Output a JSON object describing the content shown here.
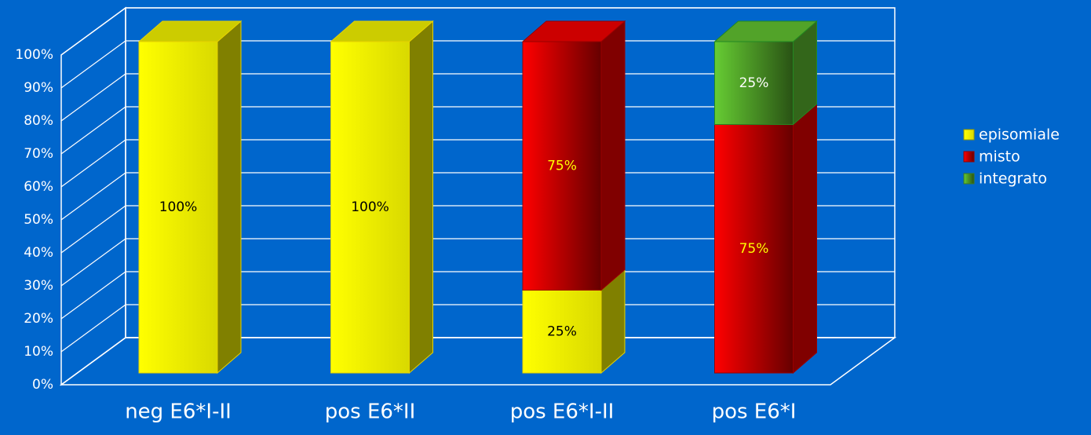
{
  "chart_data": {
    "type": "bar3d-stacked",
    "categories": [
      "neg E6*I-II",
      "pos E6*II",
      "pos E6*I-II",
      "pos E6*I"
    ],
    "series": [
      {
        "name": "episomiale",
        "color": "#ffff00",
        "label_color": "#000000",
        "values": [
          100,
          100,
          25,
          0
        ],
        "value_labels": [
          "100%",
          "100%",
          "25%",
          null
        ]
      },
      {
        "name": "misto",
        "color": "#ff0000",
        "label_color": "#ffff00",
        "values": [
          0,
          0,
          75,
          75
        ],
        "value_labels": [
          null,
          null,
          "75%",
          "75%"
        ]
      },
      {
        "name": "integrato",
        "color": "#66cc33",
        "label_color": "#ffffff",
        "values": [
          0,
          0,
          0,
          25
        ],
        "value_labels": [
          null,
          null,
          null,
          "25%"
        ]
      }
    ],
    "ylim": [
      0,
      100
    ],
    "yticks": [
      {
        "value": 0,
        "label": "0%"
      },
      {
        "value": 10,
        "label": "10%"
      },
      {
        "value": 20,
        "label": "20%"
      },
      {
        "value": 30,
        "label": "30%"
      },
      {
        "value": 40,
        "label": "40%"
      },
      {
        "value": 50,
        "label": "50%"
      },
      {
        "value": 60,
        "label": "60%"
      },
      {
        "value": 70,
        "label": "70%"
      },
      {
        "value": 80,
        "label": "80%"
      },
      {
        "value": 90,
        "label": "90%"
      },
      {
        "value": 100,
        "label": "100%"
      }
    ],
    "grid": true,
    "legend": "right"
  }
}
